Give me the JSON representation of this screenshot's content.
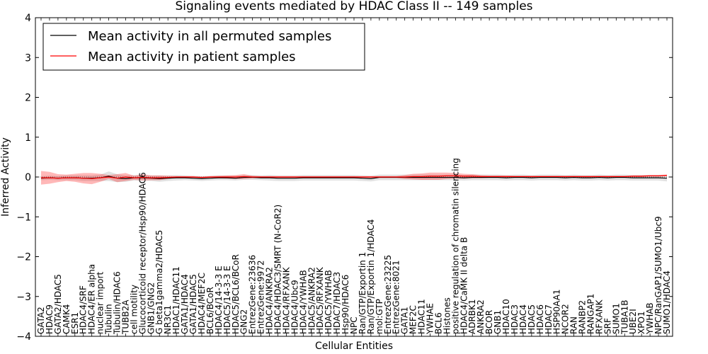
{
  "chart_data": {
    "type": "line",
    "title": "Signaling events mediated by HDAC Class II -- 149 samples",
    "xlabel": "Cellular Entities",
    "ylabel": "Inferred Activity",
    "ylim": [
      -4,
      4
    ],
    "yticks": [
      -4,
      -3,
      -2,
      -1,
      0,
      1,
      2,
      3,
      4
    ],
    "ytick_labels": [
      "−4",
      "−3",
      "−2",
      "−1",
      "0",
      "1",
      "2",
      "3",
      "4"
    ],
    "legend_position": "top-left",
    "categories": [
      "GATA2",
      "HDAC9",
      "GATA2/HDAC5",
      "CAMK4",
      "ESR1",
      "HDAC4/SRF",
      "HDAC4/ER alpha",
      "nuclear import",
      "Tubulin",
      "Tubulin/HDAC6",
      "TUBB2A",
      "cell motility",
      "Glucocorticoid receptor/Hsp90/HDAC6",
      "GNB1/GNG2",
      "G beta1gamma2/HDAC5",
      "NR3C1",
      "HDAC1/HDAC11",
      "GATA1/HDAC4",
      "GATA1/HDAC5",
      "HDAC4/MEF2C",
      "BCL6/BCoR",
      "HDAC4/14-3-3 E",
      "HDAC5/14-3-3 E",
      "HDAC5/BCL6/BCoR",
      "GNG2",
      "EntrezGene:23636",
      "EntrezGene:9972",
      "HDAC4/ANKRA2",
      "HDAC4/HDAC3/SMRT (N-CoR2)",
      "HDAC4/RFXANK",
      "HDAC4/Ubc9",
      "HDAC4/YWHAB",
      "HDAC5/ANKRA2",
      "HDAC5/RFXANK",
      "HDAC5/YWHAB",
      "HDAC7/HDAC3",
      "Hsp90/HDAC6",
      "NPC",
      "Ran/GTP/Exportin 1",
      "Ran/GTP/Exportin 1/HDAC4",
      "mol:GTP",
      "EntrezGene:23225",
      "EntrezGene:8021",
      "GATA1",
      "MEF2C",
      "HDAC11",
      "YWHAE",
      "BCL6",
      "Histones",
      "positive regulation of chromatin silencing",
      "HDAC4/CaMK II delta B",
      "ADRBK1",
      "ANKRA2",
      "BCOR",
      "GNB1",
      "HDAC10",
      "HDAC3",
      "HDAC4",
      "HDAC5",
      "HDAC6",
      "HDAC7",
      "HSP90AA1",
      "NCOR2",
      "RAN",
      "RANBP2",
      "RANGAP1",
      "RFXANK",
      "SRF",
      "SUMO1",
      "TUBA1B",
      "UBE2I",
      "XPO1",
      "YWHAB",
      "NPC/RanGAP1/SUMO1/Ubc9",
      "SUMO1/HDAC4"
    ],
    "series": [
      {
        "name": "Mean activity in all permuted samples",
        "color": "#000000",
        "values": [
          -0.03,
          -0.02,
          -0.03,
          -0.02,
          -0.02,
          -0.03,
          -0.03,
          -0.02,
          0.02,
          -0.03,
          -0.04,
          -0.02,
          -0.02,
          -0.03,
          -0.04,
          -0.03,
          -0.02,
          -0.02,
          -0.03,
          -0.04,
          -0.03,
          -0.02,
          -0.02,
          -0.03,
          -0.01,
          -0.01,
          -0.02,
          -0.02,
          -0.03,
          -0.03,
          -0.03,
          -0.02,
          -0.02,
          -0.02,
          -0.02,
          -0.02,
          -0.02,
          -0.02,
          -0.03,
          -0.04,
          -0.01,
          -0.01,
          -0.01,
          -0.01,
          -0.01,
          -0.01,
          -0.01,
          -0.01,
          -0.01,
          -0.01,
          -0.02,
          -0.01,
          -0.01,
          -0.01,
          -0.01,
          -0.02,
          -0.01,
          -0.01,
          -0.02,
          -0.01,
          -0.01,
          -0.01,
          -0.02,
          -0.01,
          -0.02,
          -0.02,
          -0.01,
          -0.02,
          -0.01,
          -0.01,
          -0.02,
          -0.02,
          -0.02,
          -0.02,
          -0.03
        ],
        "band": [
          0.05,
          0.05,
          0.05,
          0.06,
          0.06,
          0.07,
          0.07,
          0.08,
          0.12,
          0.1,
          0.08,
          0.07,
          0.07,
          0.07,
          0.08,
          0.07,
          0.07,
          0.06,
          0.06,
          0.06,
          0.06,
          0.06,
          0.06,
          0.06,
          0.06,
          0.06,
          0.06,
          0.07,
          0.07,
          0.07,
          0.07,
          0.07,
          0.07,
          0.07,
          0.07,
          0.07,
          0.07,
          0.07,
          0.07,
          0.07,
          0.07,
          0.07,
          0.07,
          0.07,
          0.07,
          0.07,
          0.07,
          0.07,
          0.07,
          0.07,
          0.07,
          0.07,
          0.07,
          0.07,
          0.07,
          0.07,
          0.07,
          0.07,
          0.07,
          0.07,
          0.07,
          0.07,
          0.07,
          0.07,
          0.07,
          0.07,
          0.07,
          0.07,
          0.07,
          0.07,
          0.07,
          0.07,
          0.07,
          0.07,
          0.08
        ]
      },
      {
        "name": "Mean activity in patient samples",
        "color": "#ff0000",
        "values": [
          -0.02,
          -0.02,
          -0.03,
          -0.02,
          -0.02,
          -0.03,
          -0.04,
          -0.02,
          0.0,
          -0.03,
          0.0,
          -0.02,
          -0.01,
          -0.02,
          -0.02,
          -0.01,
          0.0,
          0.0,
          0.0,
          -0.01,
          0.0,
          0.0,
          0.0,
          0.0,
          0.01,
          0.0,
          0.0,
          0.0,
          0.0,
          0.0,
          0.0,
          0.0,
          0.0,
          0.0,
          0.0,
          0.0,
          0.0,
          0.0,
          0.0,
          0.0,
          0.0,
          0.0,
          0.0,
          0.0,
          0.01,
          0.01,
          0.02,
          0.02,
          0.03,
          0.03,
          0.02,
          0.02,
          0.01,
          0.01,
          0.01,
          0.01,
          0.01,
          0.01,
          0.01,
          0.01,
          0.01,
          0.01,
          0.01,
          0.01,
          0.01,
          0.01,
          0.01,
          0.01,
          0.01,
          0.01,
          0.02,
          0.02,
          0.03,
          0.03,
          0.04
        ],
        "band": [
          0.17,
          0.15,
          0.1,
          0.08,
          0.1,
          0.13,
          0.14,
          0.1,
          0.05,
          0.1,
          0.1,
          0.05,
          0.08,
          0.06,
          0.06,
          0.04,
          0.02,
          0.02,
          0.02,
          0.02,
          0.02,
          0.03,
          0.04,
          0.05,
          0.06,
          0.03,
          0.02,
          0.02,
          0.02,
          0.02,
          0.02,
          0.02,
          0.02,
          0.02,
          0.02,
          0.02,
          0.02,
          0.02,
          0.02,
          0.02,
          0.02,
          0.02,
          0.02,
          0.05,
          0.07,
          0.08,
          0.09,
          0.09,
          0.08,
          0.07,
          0.06,
          0.05,
          0.04,
          0.03,
          0.03,
          0.03,
          0.02,
          0.02,
          0.02,
          0.02,
          0.02,
          0.02,
          0.02,
          0.02,
          0.02,
          0.02,
          0.02,
          0.02,
          0.02,
          0.02,
          0.02,
          0.02,
          0.02,
          0.02,
          0.02
        ]
      }
    ]
  }
}
